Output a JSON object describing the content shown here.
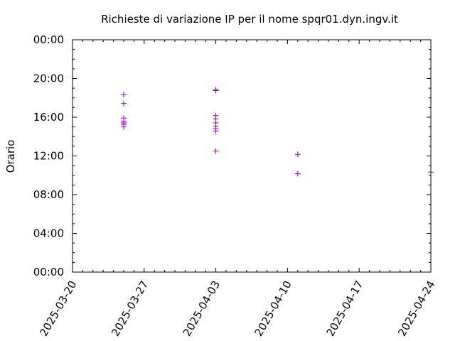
{
  "chart_data": {
    "type": "scatter",
    "title": "Richieste di variazione IP per il nome spqr01.dyn.ingv.it",
    "xlabel": "",
    "ylabel": "Orario",
    "x_axis": {
      "type": "date",
      "range": [
        "2025-03-20",
        "2025-04-24"
      ],
      "tick_labels": [
        "2025-03-20",
        "2025-03-27",
        "2025-04-03",
        "2025-04-10",
        "2025-04-17",
        "2025-04-24"
      ]
    },
    "y_axis": {
      "type": "time-of-day",
      "range": [
        "00:00",
        "24:00"
      ],
      "tick_labels": [
        "00:00",
        "04:00",
        "08:00",
        "12:00",
        "16:00",
        "20:00",
        "00:00"
      ]
    },
    "grid": false,
    "legend": "none",
    "marker": "+",
    "color": "#9400d3",
    "series": [
      {
        "points": [
          {
            "date": "2025-03-25",
            "time": "18:20"
          },
          {
            "date": "2025-03-25",
            "time": "17:25"
          },
          {
            "date": "2025-03-25",
            "time": "15:55"
          },
          {
            "date": "2025-03-25",
            "time": "15:35"
          },
          {
            "date": "2025-03-25",
            "time": "15:25"
          },
          {
            "date": "2025-03-25",
            "time": "15:15"
          },
          {
            "date": "2025-03-25",
            "time": "15:00"
          },
          {
            "date": "2025-04-03",
            "time": "18:50"
          },
          {
            "date": "2025-04-03",
            "time": "18:45"
          },
          {
            "date": "2025-04-03",
            "time": "16:10"
          },
          {
            "date": "2025-04-03",
            "time": "15:50"
          },
          {
            "date": "2025-04-03",
            "time": "15:25"
          },
          {
            "date": "2025-04-03",
            "time": "15:05"
          },
          {
            "date": "2025-04-03",
            "time": "14:50"
          },
          {
            "date": "2025-04-03",
            "time": "14:35"
          },
          {
            "date": "2025-04-03",
            "time": "12:30"
          },
          {
            "date": "2025-04-11",
            "time": "12:10"
          },
          {
            "date": "2025-04-11",
            "time": "10:10"
          },
          {
            "date": "2025-04-24",
            "time": "10:20"
          }
        ]
      }
    ]
  }
}
